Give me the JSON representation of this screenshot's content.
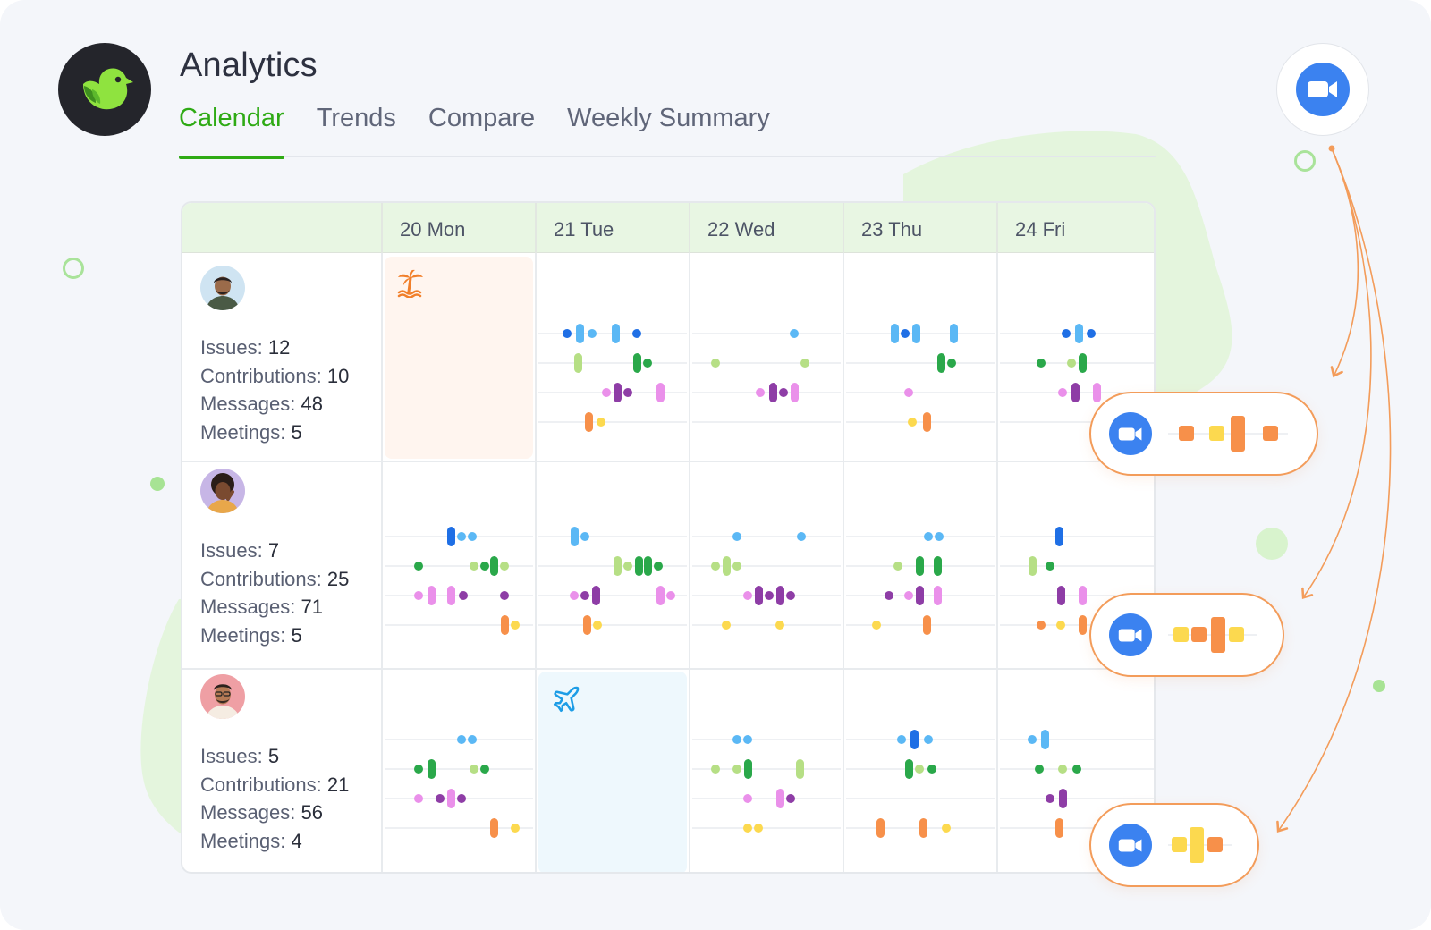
{
  "app": {
    "title": "Analytics",
    "logo_icon": "bird-icon",
    "accent_color": "#2eaa14"
  },
  "tabs": [
    {
      "label": "Calendar",
      "active": true
    },
    {
      "label": "Trends",
      "active": false
    },
    {
      "label": "Compare",
      "active": false
    },
    {
      "label": "Weekly Summary",
      "active": false
    }
  ],
  "video_icon": "video-camera-icon",
  "calendar": {
    "days": [
      {
        "num": "20",
        "name": "Mon"
      },
      {
        "num": "21",
        "name": "Tue"
      },
      {
        "num": "22",
        "name": "Wed"
      },
      {
        "num": "23",
        "name": "Thu"
      },
      {
        "num": "24",
        "name": "Fri"
      }
    ],
    "activity_colors": {
      "issues": [
        "#1f6fe5",
        "#5bb8f5"
      ],
      "contributions": [
        "#2aa84a",
        "#b6df85"
      ],
      "messages": [
        "#8e3da6",
        "#ea90ea"
      ],
      "meetings": [
        "#f7904a",
        "#fcd94f"
      ]
    },
    "people": [
      {
        "avatar": "person-avatar-1",
        "stats": [
          {
            "label": "Issues:",
            "value": "12"
          },
          {
            "label": "Contributions:",
            "value": "10"
          },
          {
            "label": "Messages:",
            "value": "48"
          },
          {
            "label": "Meetings:",
            "value": "5"
          }
        ],
        "special_day": {
          "day_index": 0,
          "icon": "palm-tree-icon",
          "kind": "vacation"
        }
      },
      {
        "avatar": "person-avatar-2",
        "stats": [
          {
            "label": "Issues:",
            "value": "7"
          },
          {
            "label": "Contributions:",
            "value": "25"
          },
          {
            "label": "Messages:",
            "value": "71"
          },
          {
            "label": "Meetings:",
            "value": "5"
          }
        ],
        "special_day": null
      },
      {
        "avatar": "person-avatar-3",
        "stats": [
          {
            "label": "Issues:",
            "value": "5"
          },
          {
            "label": "Contributions:",
            "value": "21"
          },
          {
            "label": "Messages:",
            "value": "56"
          },
          {
            "label": "Meetings:",
            "value": "4"
          }
        ],
        "special_day": {
          "day_index": 1,
          "icon": "airplane-icon",
          "kind": "travel"
        }
      }
    ]
  }
}
